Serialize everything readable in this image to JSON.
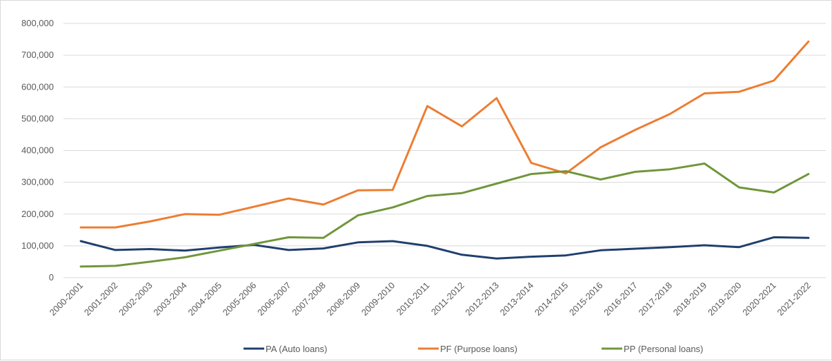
{
  "chart_data": {
    "type": "line",
    "title": "",
    "xlabel": "",
    "ylabel": "",
    "ylim": [
      0,
      800000
    ],
    "y_ticks": [
      "0",
      "100,000",
      "200,000",
      "300,000",
      "400,000",
      "500,000",
      "600,000",
      "700,000",
      "800,000"
    ],
    "y_tick_values": [
      0,
      100000,
      200000,
      300000,
      400000,
      500000,
      600000,
      700000,
      800000
    ],
    "grid": "horizontal",
    "legend": "bottom",
    "categories": [
      "2000-2001",
      "2001-2002",
      "2002-2003",
      "2003-2004",
      "2004-2005",
      "2005-2006",
      "2006-2007",
      "2007-2008",
      "2008-2009",
      "2009-2010",
      "2010-2011",
      "2011-2012",
      "2012-2013",
      "2013-2014",
      "2014-2015",
      "2015-2016",
      "2016-2017",
      "2017-2018",
      "2018-2019",
      "2019-2020",
      "2020-2021",
      "2021-2022"
    ],
    "series": [
      {
        "name": "PA (Auto loans)",
        "color": "#1f3f6e",
        "values": [
          115000,
          87000,
          90000,
          85000,
          95000,
          103000,
          87000,
          92000,
          111000,
          115000,
          100000,
          72000,
          60000,
          66000,
          70000,
          86000,
          91000,
          96000,
          102000,
          96000,
          127000,
          125000
        ]
      },
      {
        "name": "PF (Purpose loans)",
        "color": "#ed7d31",
        "values": [
          158000,
          158000,
          177000,
          200000,
          198000,
          223000,
          249000,
          230000,
          275000,
          276000,
          540000,
          476000,
          565000,
          361000,
          328000,
          410000,
          465000,
          515000,
          580000,
          585000,
          620000,
          743000
        ]
      },
      {
        "name": "PP (Personal loans)",
        "color": "#70963a",
        "values": [
          35000,
          37000,
          50000,
          64000,
          85000,
          106000,
          127000,
          125000,
          196000,
          221000,
          257000,
          266000,
          296000,
          326000,
          335000,
          309000,
          333000,
          341000,
          359000,
          284000,
          268000,
          326000
        ]
      }
    ]
  }
}
